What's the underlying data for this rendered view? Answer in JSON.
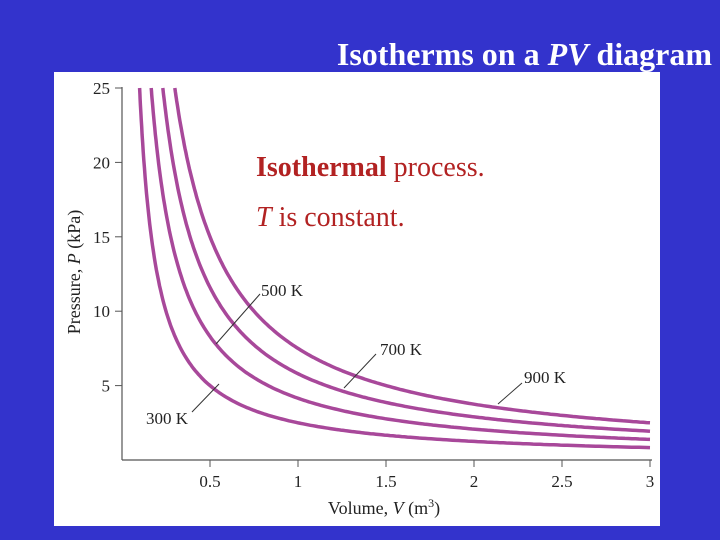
{
  "slide": {
    "title_prefix": "Isotherms on a ",
    "title_pv": "PV",
    "title_suffix": " diagram",
    "background_color": "#3333cc",
    "title_color": "#ffffff"
  },
  "annotation": {
    "line1_bold": "Isothermal",
    "line1_rest": "process.",
    "line2_t": "T",
    "line2_rest": "is constant.",
    "color": "#b22222"
  },
  "chart_data": {
    "type": "line",
    "xlabel_prefix": "Volume, ",
    "xlabel_var": "V",
    "xlabel_unit": " (m",
    "xlabel_exp": "3",
    "xlabel_close": ")",
    "ylabel_prefix": "Pressure, ",
    "ylabel_var": "P",
    "ylabel_unit": " (kPa)",
    "xlim": [
      0,
      3
    ],
    "ylim": [
      0,
      25
    ],
    "x_ticks": [
      0.5,
      1,
      1.5,
      2,
      2.5,
      3
    ],
    "x_tick_labels": [
      "0.5",
      "1",
      "1.5",
      "2",
      "2.5",
      "3"
    ],
    "y_ticks": [
      5,
      10,
      15,
      20,
      25
    ],
    "y_tick_labels": [
      "5",
      "10",
      "15",
      "20",
      "25"
    ],
    "curve_color": "#a8489a",
    "series": [
      {
        "name": "300 K",
        "k": 2.5
      },
      {
        "name": "500 K",
        "k": 4.15
      },
      {
        "name": "700 K",
        "k": 5.8
      },
      {
        "name": "900 K",
        "k": 7.5
      }
    ]
  }
}
